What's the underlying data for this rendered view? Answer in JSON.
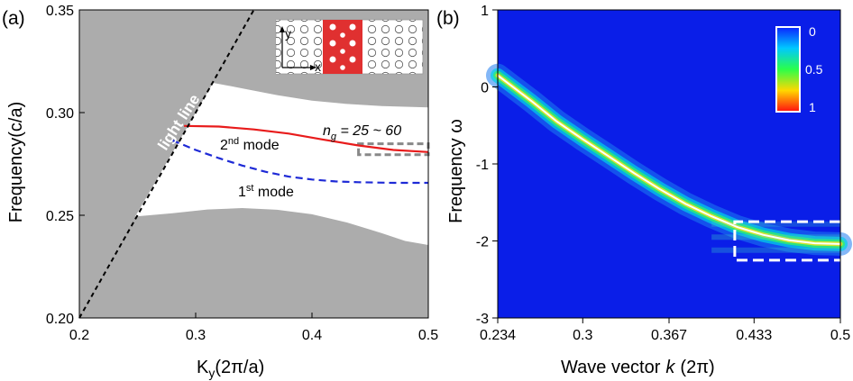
{
  "colors": {
    "bulk": "#acacac",
    "mode2": "#e81b1b",
    "mode1": "#1e2ad6",
    "heat_bg": "#0a1ee8",
    "box_a": "#888888",
    "box_b": "#ffffff"
  },
  "chart_data": [
    {
      "type": "line",
      "panel_label": "(a)",
      "xlabel": "K",
      "xlabel_sub": "y",
      "xlabel_tail": "(2π/a)",
      "ylabel": "Frequency(c/a)",
      "xlim": [
        0.2,
        0.5
      ],
      "ylim": [
        0.2,
        0.35
      ],
      "x_ticks": [
        "0.2",
        "0.3",
        "0.4",
        "0.5"
      ],
      "y_ticks": [
        "0.20",
        "0.25",
        "0.30",
        "0.35"
      ],
      "annotations": {
        "light_line": "light line",
        "ng_prefix": "n",
        "ng_sub": "g",
        "ng_tail": " = 25 ~ 60",
        "mode2_num": "2",
        "mode2_sup": "nd",
        "mode2_tail": " mode",
        "mode1_num": "1",
        "mode1_sup": "st",
        "mode1_tail": " mode",
        "inset_y": "y",
        "inset_x": "x"
      },
      "series": [
        {
          "role": "light-line",
          "x": [
            0.2,
            0.35
          ],
          "y": [
            0.2,
            0.35
          ]
        },
        {
          "role": "mode-2",
          "x": [
            0.29,
            0.32,
            0.35,
            0.38,
            0.41,
            0.44,
            0.47,
            0.5
          ],
          "y": [
            0.2935,
            0.2932,
            0.2918,
            0.2898,
            0.2868,
            0.284,
            0.2818,
            0.2808
          ]
        },
        {
          "role": "mode-1",
          "x": [
            0.28,
            0.3,
            0.32,
            0.34,
            0.36,
            0.38,
            0.4,
            0.42,
            0.44,
            0.47,
            0.5
          ],
          "y": [
            0.2865,
            0.2818,
            0.2778,
            0.2742,
            0.2712,
            0.2688,
            0.2674,
            0.2665,
            0.2661,
            0.2658,
            0.2658
          ]
        },
        {
          "role": "upper-band-edge",
          "x": [
            0.315,
            0.34,
            0.37,
            0.4,
            0.43,
            0.46,
            0.5
          ],
          "y": [
            0.3145,
            0.3118,
            0.3085,
            0.3058,
            0.3042,
            0.3032,
            0.3025
          ]
        },
        {
          "role": "lower-band-edge",
          "x": [
            0.248,
            0.28,
            0.31,
            0.34,
            0.37,
            0.4,
            0.43,
            0.46,
            0.48,
            0.5
          ],
          "y": [
            0.2494,
            0.251,
            0.2528,
            0.2535,
            0.2527,
            0.2505,
            0.2465,
            0.2413,
            0.2375,
            0.2355
          ]
        }
      ],
      "highlight_box": {
        "x": [
          0.44,
          0.5
        ],
        "y": [
          0.2795,
          0.2848
        ]
      }
    },
    {
      "type": "heatmap",
      "panel_label": "(b)",
      "xlabel": "Wave vector",
      "xlabel_italic": "k",
      "xlabel_tail": "(2π)",
      "ylabel": "Frequency ω",
      "xlim": [
        0.234,
        0.5
      ],
      "ylim": [
        -3,
        1
      ],
      "x_ticks": [
        "0.234",
        "0.3",
        "0.367",
        "0.433",
        "0.5"
      ],
      "y_ticks": [
        "1",
        "0",
        "-1",
        "-2",
        "-3"
      ],
      "colorbar": {
        "labels": [
          "0",
          "0.5",
          "1"
        ]
      },
      "series": [
        {
          "role": "fitted-dispersion",
          "x": [
            0.234,
            0.26,
            0.28,
            0.3,
            0.32,
            0.34,
            0.36,
            0.38,
            0.4,
            0.42,
            0.44,
            0.46,
            0.48,
            0.5
          ],
          "y": [
            0.15,
            -0.18,
            -0.45,
            -0.68,
            -0.9,
            -1.12,
            -1.33,
            -1.52,
            -1.68,
            -1.82,
            -1.92,
            -1.99,
            -2.03,
            -2.04
          ]
        }
      ],
      "highlight_box": {
        "x": [
          0.418,
          0.5
        ],
        "y": [
          -2.25,
          -1.75
        ]
      }
    }
  ]
}
